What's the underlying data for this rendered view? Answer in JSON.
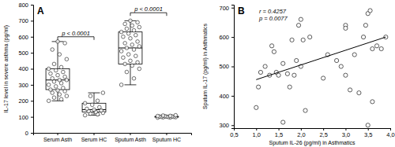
{
  "chart_data": [
    {
      "type": "box",
      "title": "A",
      "y_label": "IL-17 level in severe asthma (pg/ml)",
      "categories": [
        "Serum Asth",
        "Serum HC",
        "Sputum Asth",
        "Sputum HC"
      ],
      "min": [
        200,
        110,
        300,
        95
      ],
      "q1": [
        270,
        130,
        430,
        98
      ],
      "median": [
        330,
        145,
        530,
        100
      ],
      "q3": [
        400,
        185,
        630,
        103
      ],
      "max": [
        570,
        250,
        700,
        110
      ],
      "points": [
        [
          200,
          210,
          220,
          230,
          240,
          250,
          260,
          265,
          270,
          280,
          290,
          300,
          310,
          320,
          330,
          330,
          340,
          350,
          360,
          370,
          380,
          390,
          400,
          410,
          430,
          460,
          490,
          520,
          560,
          570
        ],
        [
          110,
          115,
          120,
          125,
          130,
          135,
          140,
          145,
          150,
          160,
          175,
          185,
          200,
          230,
          250
        ],
        [
          300,
          340,
          380,
          400,
          420,
          430,
          440,
          450,
          470,
          480,
          490,
          510,
          520,
          530,
          540,
          550,
          560,
          570,
          590,
          600,
          610,
          620,
          630,
          640,
          650,
          660,
          670,
          680,
          690,
          700
        ],
        [
          95,
          96,
          97,
          98,
          99,
          100,
          100,
          101,
          102,
          103,
          104,
          105,
          106,
          108,
          110
        ]
      ],
      "annotations": [
        {
          "text": "p < 0.0001",
          "between": [
            0,
            1
          ],
          "y": 600
        },
        {
          "text": "p < 0.0001",
          "between": [
            2,
            3
          ],
          "y": 750
        }
      ],
      "color": "#333333",
      "ylim": [
        0,
        800
      ],
      "yticks": [
        0,
        100,
        200,
        300,
        400,
        500,
        600,
        700,
        800
      ],
      "grid": false
    },
    {
      "type": "scatter",
      "title": "B",
      "x_label": "Sputum IL-26 (pg/ml) in Asthmatics",
      "y_label": "Sputum IL-17 (pg/ml) in Asthmatics",
      "x": [
        1.0,
        1.05,
        1.1,
        1.2,
        1.3,
        1.35,
        1.4,
        1.45,
        1.5,
        1.6,
        1.6,
        1.7,
        1.75,
        1.8,
        1.85,
        1.9,
        1.95,
        2.0,
        2.0,
        2.05,
        2.1,
        2.2,
        2.5,
        2.6,
        2.8,
        2.9,
        3.0,
        3.0,
        3.0,
        3.1,
        3.2,
        3.3,
        3.4,
        3.45,
        3.5,
        3.5,
        3.55,
        3.6,
        3.6,
        3.7,
        3.8,
        3.9
      ],
      "values": [
        360,
        430,
        480,
        500,
        470,
        570,
        550,
        480,
        470,
        310,
        510,
        475,
        430,
        590,
        470,
        520,
        640,
        660,
        500,
        590,
        350,
        600,
        460,
        540,
        520,
        500,
        640,
        630,
        470,
        420,
        540,
        410,
        600,
        640,
        680,
        300,
        690,
        380,
        560,
        570,
        560,
        600
      ],
      "fit_line": {
        "x": [
          1.0,
          3.9
        ],
        "values": [
          455,
          600
        ]
      },
      "annotations": [
        {
          "text": "r = 0.4257"
        },
        {
          "text": "p = 0.0077"
        }
      ],
      "color": "#333333",
      "marker": "circle",
      "xlim": [
        0.5,
        4.0
      ],
      "xticks": [
        {
          "value": 0.5,
          "label": "0,5"
        },
        {
          "value": 1.0,
          "label": "1,0"
        },
        {
          "value": 1.5,
          "label": "1,5"
        },
        {
          "value": 2.0,
          "label": "2,0"
        },
        {
          "value": 2.5,
          "label": "2,5"
        },
        {
          "value": 3.0,
          "label": "3,0"
        },
        {
          "value": 3.5,
          "label": "3,5"
        },
        {
          "value": 4.0,
          "label": "4,0"
        }
      ],
      "ylim": [
        290,
        710
      ],
      "yticks": [
        300,
        400,
        500,
        600,
        700
      ],
      "grid": false
    }
  ]
}
